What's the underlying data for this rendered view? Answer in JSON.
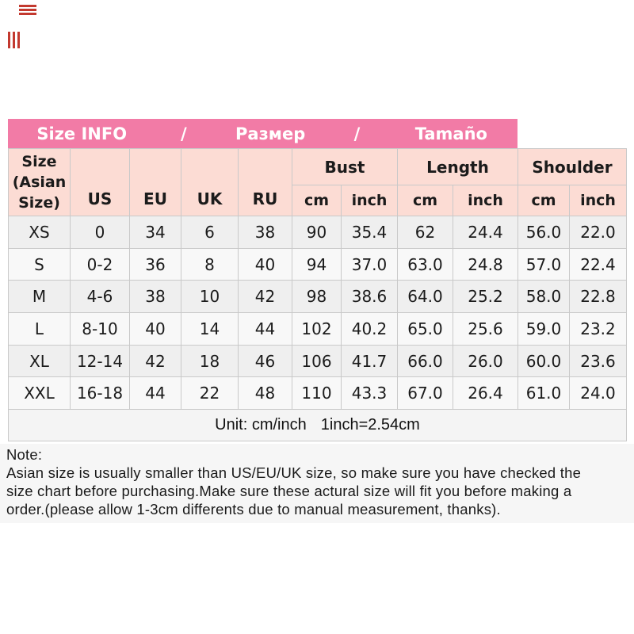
{
  "decor": {
    "watermark_color": "#c3392f"
  },
  "banner": {
    "bg_color": "#f27ba6",
    "text_color": "#ffffff",
    "segments": [
      "Size INFO",
      "/",
      "Размер",
      "/",
      "Tamaño"
    ]
  },
  "table": {
    "colors": {
      "header_bg": "#fcdcd4",
      "row_alt_a": "#efefef",
      "row_alt_b": "#f8f8f8",
      "grid_line": "#c9c9c9"
    },
    "corner_header_lines": [
      "Size",
      "(Asian",
      "Size)"
    ],
    "region_headers": [
      "US",
      "EU",
      "UK",
      "RU"
    ],
    "measure_groups": [
      {
        "label": "Bust",
        "sub": [
          "cm",
          "inch"
        ]
      },
      {
        "label": "Length",
        "sub": [
          "cm",
          "inch"
        ]
      },
      {
        "label": "Shoulder",
        "sub": [
          "cm",
          "inch"
        ]
      }
    ],
    "rows": [
      {
        "size": "XS",
        "us": "0",
        "eu": "34",
        "uk": "6",
        "ru": "38",
        "bust_cm": "90",
        "bust_inch": "35.4",
        "len_cm": "62",
        "len_inch": "24.4",
        "sh_cm": "56.0",
        "sh_inch": "22.0"
      },
      {
        "size": "S",
        "us": "0-2",
        "eu": "36",
        "uk": "8",
        "ru": "40",
        "bust_cm": "94",
        "bust_inch": "37.0",
        "len_cm": "63.0",
        "len_inch": "24.8",
        "sh_cm": "57.0",
        "sh_inch": "22.4"
      },
      {
        "size": "M",
        "us": "4-6",
        "eu": "38",
        "uk": "10",
        "ru": "42",
        "bust_cm": "98",
        "bust_inch": "38.6",
        "len_cm": "64.0",
        "len_inch": "25.2",
        "sh_cm": "58.0",
        "sh_inch": "22.8"
      },
      {
        "size": "L",
        "us": "8-10",
        "eu": "40",
        "uk": "14",
        "ru": "44",
        "bust_cm": "102",
        "bust_inch": "40.2",
        "len_cm": "65.0",
        "len_inch": "25.6",
        "sh_cm": "59.0",
        "sh_inch": "23.2"
      },
      {
        "size": "XL",
        "us": "12-14",
        "eu": "42",
        "uk": "18",
        "ru": "46",
        "bust_cm": "106",
        "bust_inch": "41.7",
        "len_cm": "66.0",
        "len_inch": "26.0",
        "sh_cm": "60.0",
        "sh_inch": "23.6"
      },
      {
        "size": "XXL",
        "us": "16-18",
        "eu": "44",
        "uk": "22",
        "ru": "48",
        "bust_cm": "110",
        "bust_inch": "43.3",
        "len_cm": "67.0",
        "len_inch": "26.4",
        "sh_cm": "61.0",
        "sh_inch": "24.0"
      }
    ],
    "unit_label": "Unit: cm/inch",
    "unit_conversion": "1inch=2.54cm"
  },
  "note": {
    "label": "Note:",
    "lines": [
      "Asian size is usually smaller than US/EU/UK size, so make sure you have checked the",
      "size chart before purchasing.Make sure these actural size will fit you before making a",
      "order.(please allow 1-3cm differents due to manual measurement, thanks)."
    ]
  }
}
